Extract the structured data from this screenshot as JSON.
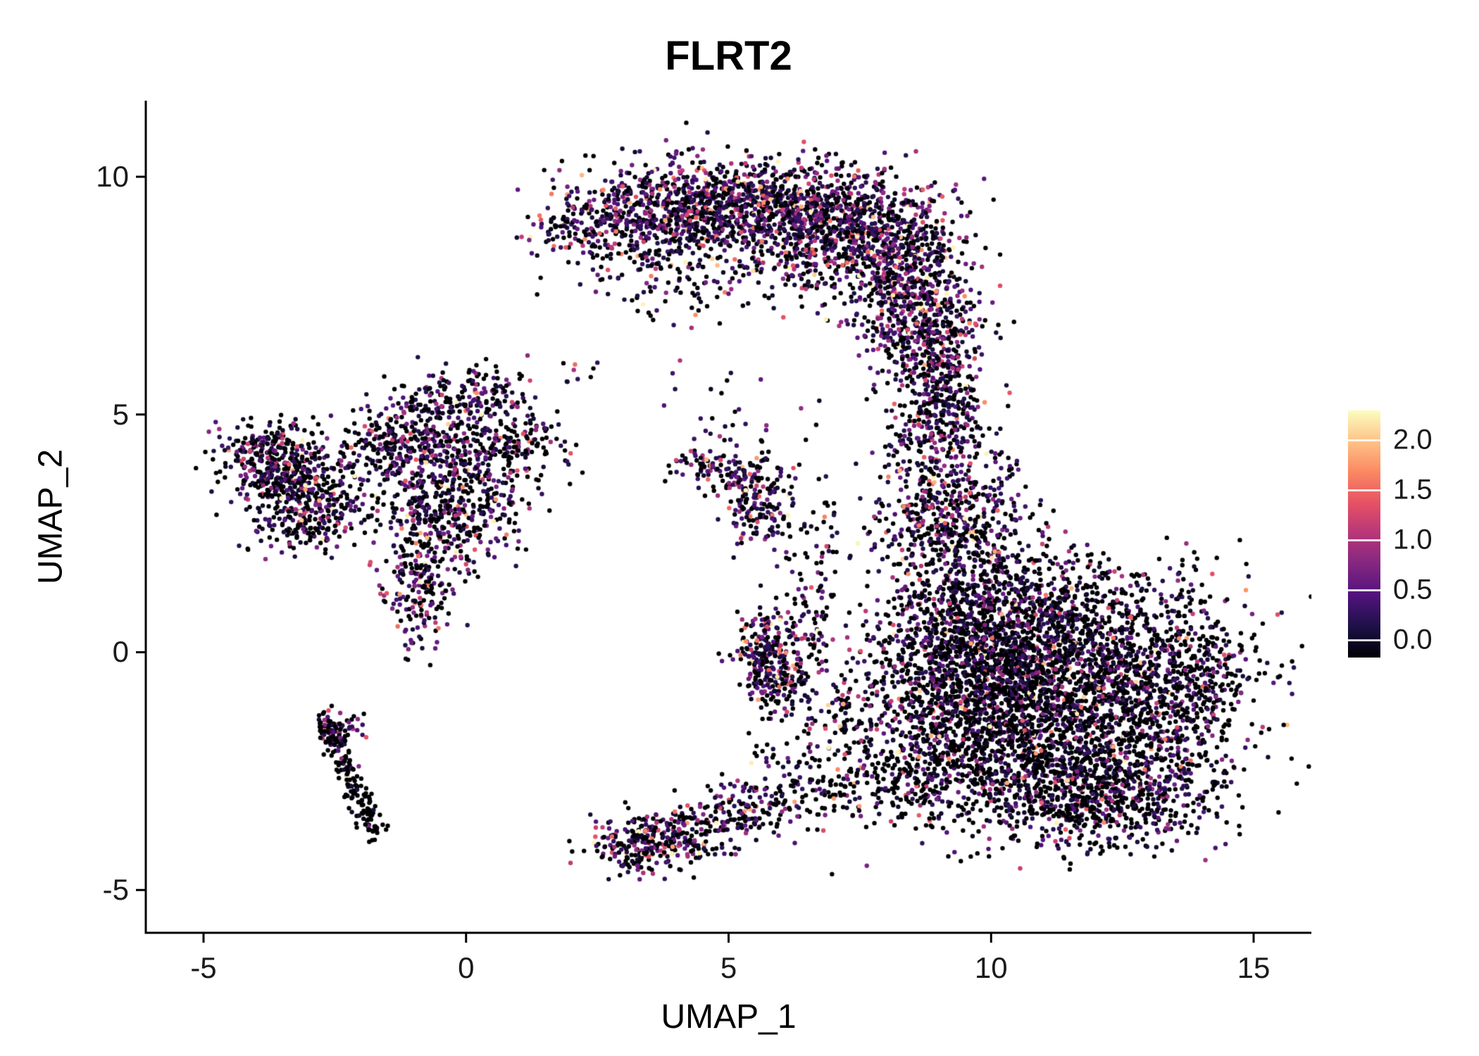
{
  "chart_data": {
    "type": "scatter",
    "title": "FLRT2",
    "xlabel": "UMAP_1",
    "ylabel": "UMAP_2",
    "xlim": [
      -6.1,
      16.1
    ],
    "ylim": [
      -5.9,
      11.6
    ],
    "xticks": [
      -5,
      0,
      5,
      10,
      15
    ],
    "xtick_labels": [
      "-5",
      "0",
      "5",
      "10",
      "15"
    ],
    "yticks": [
      10,
      5,
      0,
      -5
    ],
    "ytick_labels": [
      "10",
      "5",
      "0",
      "-5"
    ],
    "grid": false,
    "legend_position": "right",
    "point_radius_px": 3.2,
    "seed": 20240611,
    "colorbar": {
      "position": "right",
      "tick_values": [
        0.0,
        0.5,
        1.0,
        1.5,
        2.0
      ],
      "tick_labels": [
        "0.0",
        "0.5",
        "1.0",
        "1.5",
        "2.0"
      ],
      "value_range": [
        0,
        2.3
      ],
      "colormap": "magma",
      "colormap_stops": [
        "#000004",
        "#1D1147",
        "#51127C",
        "#822681",
        "#B63679",
        "#E65164",
        "#FB8861",
        "#FEC287",
        "#FCFDBF"
      ]
    },
    "clusters": [
      {
        "name": "arc-tip",
        "cx": 2.2,
        "cy": 8.95,
        "sx": 0.55,
        "sy": 0.4,
        "n": 160,
        "p0": 0.33,
        "cm": 0.55
      },
      {
        "name": "arc-2",
        "cx": 3.5,
        "cy": 9.25,
        "sx": 0.7,
        "sy": 0.45,
        "n": 320,
        "p0": 0.33,
        "cm": 0.55
      },
      {
        "name": "arc-3",
        "cx": 4.8,
        "cy": 9.4,
        "sx": 0.8,
        "sy": 0.5,
        "n": 480,
        "p0": 0.33,
        "cm": 0.55
      },
      {
        "name": "arc-4",
        "cx": 6.2,
        "cy": 9.3,
        "sx": 0.9,
        "sy": 0.55,
        "n": 560,
        "p0": 0.33,
        "cm": 0.55
      },
      {
        "name": "arc-5",
        "cx": 7.4,
        "cy": 8.9,
        "sx": 0.85,
        "sy": 0.6,
        "n": 520,
        "p0": 0.33,
        "cm": 0.55
      },
      {
        "name": "arc-6",
        "cx": 8.35,
        "cy": 8.1,
        "sx": 0.65,
        "sy": 0.7,
        "n": 420,
        "p0": 0.35,
        "cm": 0.55
      },
      {
        "name": "arc-7",
        "cx": 8.65,
        "cy": 7.0,
        "sx": 0.5,
        "sy": 0.6,
        "n": 300,
        "p0": 0.35,
        "cm": 0.55
      },
      {
        "name": "arc-8",
        "cx": 8.9,
        "cy": 6.1,
        "sx": 0.45,
        "sy": 0.45,
        "n": 190,
        "p0": 0.38,
        "cm": 0.5
      },
      {
        "name": "arc-under-1",
        "cx": 5.1,
        "cy": 8.1,
        "sx": 1.3,
        "sy": 0.65,
        "n": 140,
        "p0": 0.45,
        "cm": 0.5
      },
      {
        "name": "arc-under-2",
        "cx": 3.8,
        "cy": 7.8,
        "sx": 0.6,
        "sy": 0.55,
        "n": 60,
        "p0": 0.5,
        "cm": 0.5
      },
      {
        "name": "neck-1",
        "cx": 9.1,
        "cy": 5.3,
        "sx": 0.4,
        "sy": 0.5,
        "n": 130,
        "p0": 0.45,
        "cm": 0.5
      },
      {
        "name": "neck-2",
        "cx": 9.0,
        "cy": 4.4,
        "sx": 0.5,
        "sy": 0.5,
        "n": 160,
        "p0": 0.45,
        "cm": 0.5
      },
      {
        "name": "neck-3",
        "cx": 9.3,
        "cy": 3.3,
        "sx": 0.7,
        "sy": 0.6,
        "n": 260,
        "p0": 0.45,
        "cm": 0.55
      },
      {
        "name": "neck-4",
        "cx": 9.0,
        "cy": 2.4,
        "sx": 0.8,
        "sy": 0.5,
        "n": 220,
        "p0": 0.48,
        "cm": 0.5
      },
      {
        "name": "br-1",
        "cx": 10.2,
        "cy": 1.2,
        "sx": 1.0,
        "sy": 0.7,
        "n": 520,
        "p0": 0.55,
        "cm": 0.45
      },
      {
        "name": "br-2",
        "cx": 11.5,
        "cy": 0.3,
        "sx": 1.5,
        "sy": 0.8,
        "n": 820,
        "p0": 0.57,
        "cm": 0.45
      },
      {
        "name": "br-3",
        "cx": 10.3,
        "cy": -0.6,
        "sx": 1.2,
        "sy": 0.8,
        "n": 700,
        "p0": 0.57,
        "cm": 0.45
      },
      {
        "name": "br-4",
        "cx": 12.3,
        "cy": -1.2,
        "sx": 1.3,
        "sy": 0.9,
        "n": 820,
        "p0": 0.57,
        "cm": 0.45
      },
      {
        "name": "br-5",
        "cx": 10.8,
        "cy": -2.2,
        "sx": 1.3,
        "sy": 0.8,
        "n": 700,
        "p0": 0.57,
        "cm": 0.45
      },
      {
        "name": "br-6",
        "cx": 12.6,
        "cy": -2.8,
        "sx": 1.0,
        "sy": 0.6,
        "n": 450,
        "p0": 0.57,
        "cm": 0.45
      },
      {
        "name": "br-7",
        "cx": 9.5,
        "cy": -1.5,
        "sx": 0.8,
        "sy": 0.9,
        "n": 400,
        "p0": 0.55,
        "cm": 0.45
      },
      {
        "name": "br-8",
        "cx": 13.8,
        "cy": -0.5,
        "sx": 0.55,
        "sy": 0.9,
        "n": 260,
        "p0": 0.55,
        "cm": 0.5
      },
      {
        "name": "br-9",
        "cx": 9.3,
        "cy": 0.3,
        "sx": 0.6,
        "sy": 0.6,
        "n": 260,
        "p0": 0.52,
        "cm": 0.5
      },
      {
        "name": "br-10",
        "cx": 8.4,
        "cy": -2.7,
        "sx": 0.8,
        "sy": 0.5,
        "n": 200,
        "p0": 0.55,
        "cm": 0.45
      },
      {
        "name": "br-11",
        "cx": 11.8,
        "cy": -3.5,
        "sx": 0.9,
        "sy": 0.4,
        "n": 200,
        "p0": 0.57,
        "cm": 0.45
      },
      {
        "name": "centerleft-core",
        "cx": -0.4,
        "cy": 3.9,
        "sx": 0.8,
        "sy": 0.7,
        "n": 420,
        "p0": 0.45,
        "cm": 0.5
      },
      {
        "name": "centerleft-up",
        "cx": -0.5,
        "cy": 5.2,
        "sx": 0.5,
        "sy": 0.45,
        "n": 130,
        "p0": 0.45,
        "cm": 0.5
      },
      {
        "name": "centerleft-upright",
        "cx": 0.45,
        "cy": 5.5,
        "sx": 0.4,
        "sy": 0.3,
        "n": 80,
        "p0": 0.45,
        "cm": 0.5
      },
      {
        "name": "centerleft-right",
        "cx": 0.9,
        "cy": 4.4,
        "sx": 0.55,
        "sy": 0.4,
        "n": 150,
        "p0": 0.45,
        "cm": 0.5
      },
      {
        "name": "centerleft-left",
        "cx": -1.5,
        "cy": 4.4,
        "sx": 0.5,
        "sy": 0.35,
        "n": 120,
        "p0": 0.45,
        "cm": 0.5
      },
      {
        "name": "centerleft-down",
        "cx": -0.7,
        "cy": 2.6,
        "sx": 0.45,
        "sy": 0.5,
        "n": 150,
        "p0": 0.45,
        "cm": 0.5
      },
      {
        "name": "centerleft-tail",
        "cx": -0.9,
        "cy": 1.4,
        "sx": 0.35,
        "sy": 0.6,
        "n": 190,
        "p0": 0.45,
        "cm": 0.5
      },
      {
        "name": "centerleft-mid",
        "cx": 0.2,
        "cy": 2.9,
        "sx": 0.5,
        "sy": 0.5,
        "n": 100,
        "p0": 0.5,
        "cm": 0.5
      },
      {
        "name": "farleft-1",
        "cx": -3.5,
        "cy": 3.9,
        "sx": 0.55,
        "sy": 0.45,
        "n": 300,
        "p0": 0.45,
        "cm": 0.55
      },
      {
        "name": "farleft-2",
        "cx": -2.9,
        "cy": 3.2,
        "sx": 0.5,
        "sy": 0.45,
        "n": 230,
        "p0": 0.45,
        "cm": 0.55
      },
      {
        "name": "farleft-3",
        "cx": -3.9,
        "cy": 4.3,
        "sx": 0.35,
        "sy": 0.3,
        "n": 120,
        "p0": 0.45,
        "cm": 0.55
      },
      {
        "name": "farleft-4",
        "cx": -3.1,
        "cy": 2.6,
        "sx": 0.45,
        "sy": 0.3,
        "n": 80,
        "p0": 0.5,
        "cm": 0.5
      },
      {
        "name": "streak-main",
        "type": "streak",
        "x1": -2.7,
        "y1": -1.45,
        "x2": -1.7,
        "y2": -3.85,
        "jx": 0.1,
        "jy": 0.14,
        "n": 180,
        "p0": 0.75,
        "cm": 0.35
      },
      {
        "name": "streak-top",
        "cx": -2.45,
        "cy": -1.6,
        "sx": 0.25,
        "sy": 0.18,
        "n": 50,
        "p0": 0.55,
        "cm": 0.5
      },
      {
        "name": "midsmall-arm",
        "cx": 4.6,
        "cy": 3.95,
        "sx": 0.45,
        "sy": 0.14,
        "n": 60,
        "p0": 0.35,
        "cm": 0.6
      },
      {
        "name": "midsmall-blob",
        "cx": 5.6,
        "cy": 3.1,
        "sx": 0.33,
        "sy": 0.45,
        "n": 160,
        "p0": 0.35,
        "cm": 0.6
      },
      {
        "name": "midsmall-sparse",
        "cx": 5.15,
        "cy": 3.6,
        "sx": 0.3,
        "sy": 0.28,
        "n": 50,
        "p0": 0.4,
        "cm": 0.55
      },
      {
        "name": "midblob-1",
        "cx": 5.7,
        "cy": 0,
        "sx": 0.3,
        "sy": 0.42,
        "n": 190,
        "p0": 0.38,
        "cm": 0.6
      },
      {
        "name": "midblob-2",
        "cx": 5.95,
        "cy": -0.6,
        "sx": 0.3,
        "sy": 0.3,
        "n": 80,
        "p0": 0.4,
        "cm": 0.55
      },
      {
        "name": "midblob-3",
        "cx": 6.35,
        "cy": 0.3,
        "sx": 0.45,
        "sy": 0.45,
        "n": 45,
        "p0": 0.5,
        "cm": 0.5
      },
      {
        "name": "bottomcenter-1",
        "cx": 3.4,
        "cy": -4.1,
        "sx": 0.5,
        "sy": 0.3,
        "n": 210,
        "p0": 0.42,
        "cm": 0.55
      },
      {
        "name": "bottomcenter-2",
        "cx": 4.2,
        "cy": -3.8,
        "sx": 0.6,
        "sy": 0.3,
        "n": 150,
        "p0": 0.42,
        "cm": 0.55
      },
      {
        "name": "bottomcenter-3",
        "cx": 5.2,
        "cy": -3.4,
        "sx": 0.6,
        "sy": 0.3,
        "n": 100,
        "p0": 0.45,
        "cm": 0.55
      },
      {
        "name": "connector-1",
        "cx": 6.8,
        "cy": -1.8,
        "sx": 0.9,
        "sy": 0.9,
        "n": 150,
        "p0": 0.55,
        "cm": 0.45
      },
      {
        "name": "connector-2",
        "cx": 7.8,
        "cy": -0.5,
        "sx": 0.8,
        "sy": 0.8,
        "n": 110,
        "p0": 0.55,
        "cm": 0.45
      },
      {
        "name": "connector-3",
        "cx": 6.4,
        "cy": -3.0,
        "sx": 0.8,
        "sy": 0.4,
        "n": 100,
        "p0": 0.55,
        "cm": 0.45
      },
      {
        "name": "connector-4",
        "cx": 6.6,
        "cy": 1.8,
        "sx": 0.35,
        "sy": 0.8,
        "n": 70,
        "p0": 0.5,
        "cm": 0.5
      },
      {
        "name": "strays-mid",
        "cx": 6.0,
        "cy": 5.3,
        "sx": 1.3,
        "sy": 0.9,
        "n": 18,
        "p0": 0.5,
        "cm": 0.5
      },
      {
        "name": "strays-leftmid",
        "cx": 4.8,
        "cy": 4.7,
        "sx": 0.35,
        "sy": 0.3,
        "n": 14,
        "p0": 0.4,
        "cm": 0.6
      },
      {
        "name": "strays-2",
        "cx": 2.1,
        "cy": 5.85,
        "sx": 0.25,
        "sy": 0.2,
        "n": 8,
        "p0": 0.4,
        "cm": 0.5
      }
    ]
  }
}
